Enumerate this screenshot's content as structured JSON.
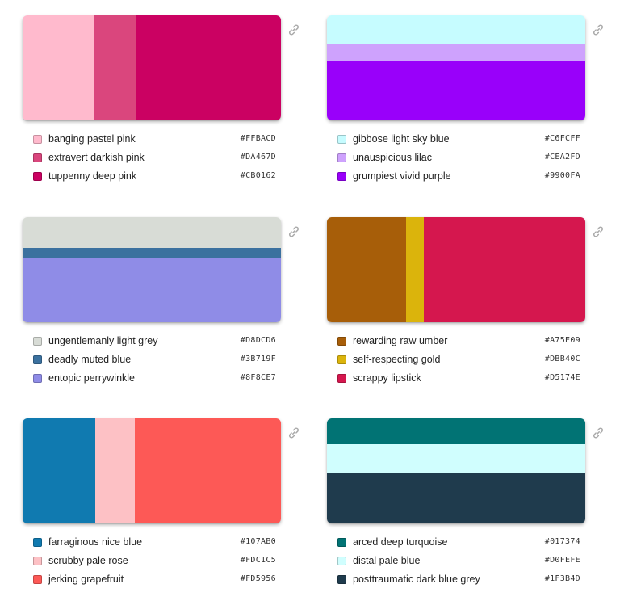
{
  "palettes": [
    {
      "orientation": "horizontal",
      "colors": [
        {
          "name": "banging pastel pink",
          "hex": "#FFBACD"
        },
        {
          "name": "extravert darkish pink",
          "hex": "#DA467D"
        },
        {
          "name": "tuppenny deep pink",
          "hex": "#CB0162"
        }
      ]
    },
    {
      "orientation": "vertical",
      "colors": [
        {
          "name": "gibbose light sky blue",
          "hex": "#C6FCFF"
        },
        {
          "name": "unauspicious lilac",
          "hex": "#CEA2FD"
        },
        {
          "name": "grumpiest vivid purple",
          "hex": "#9900FA"
        }
      ]
    },
    {
      "orientation": "vertical",
      "colors": [
        {
          "name": "ungentlemanly light grey",
          "hex": "#D8DCD6"
        },
        {
          "name": "deadly muted blue",
          "hex": "#3B719F"
        },
        {
          "name": "entopic perrywinkle",
          "hex": "#8F8CE7"
        }
      ]
    },
    {
      "orientation": "horizontal",
      "colors": [
        {
          "name": "rewarding raw umber",
          "hex": "#A75E09"
        },
        {
          "name": "self-respecting gold",
          "hex": "#DBB40C"
        },
        {
          "name": "scrappy lipstick",
          "hex": "#D5174E"
        }
      ]
    },
    {
      "orientation": "horizontal",
      "colors": [
        {
          "name": "farraginous nice blue",
          "hex": "#107AB0"
        },
        {
          "name": "scrubby pale rose",
          "hex": "#FDC1C5"
        },
        {
          "name": "jerking grapefruit",
          "hex": "#FD5956"
        }
      ]
    },
    {
      "orientation": "vertical",
      "colors": [
        {
          "name": "arced deep turquoise",
          "hex": "#017374"
        },
        {
          "name": "distal pale blue",
          "hex": "#D0FEFE"
        },
        {
          "name": "posttraumatic dark blue grey",
          "hex": "#1F3B4D"
        }
      ]
    }
  ],
  "icons": {
    "link": "link-icon"
  }
}
